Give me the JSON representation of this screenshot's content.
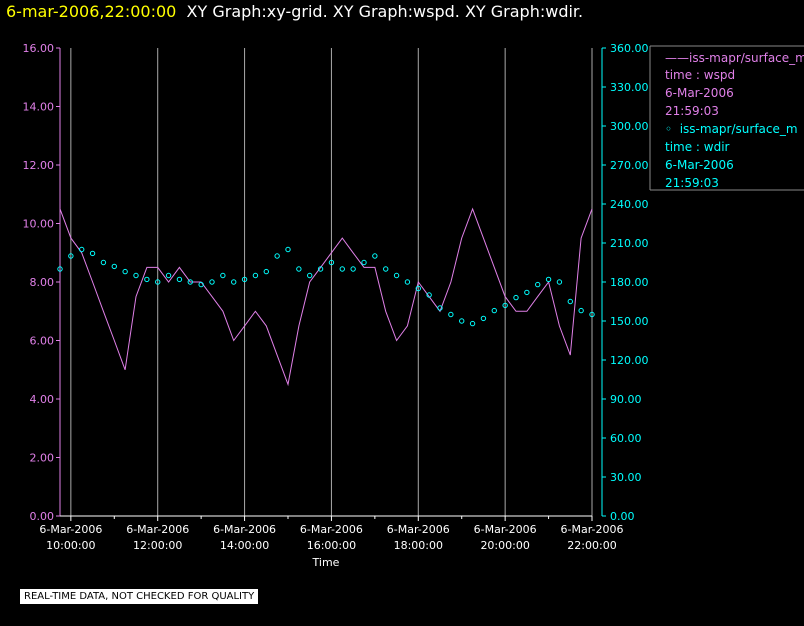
{
  "header": {
    "date": "6-mar-2006,22:00:00",
    "graphs": "XY Graph:xy-grid.  XY Graph:wspd.  XY Graph:wdir."
  },
  "notice": "REAL-TIME DATA, NOT CHECKED FOR QUALITY",
  "legend": {
    "series1": {
      "name": "iss-mapr/surface_m",
      "var": "time : wspd",
      "date": "6-Mar-2006",
      "time": "21:59:03"
    },
    "series2": {
      "name": "iss-mapr/surface_m",
      "var": "time : wdir",
      "date": "6-Mar-2006",
      "time": "21:59:03"
    }
  },
  "colors": {
    "wspd": "#e080e8",
    "wdir": "#00ffff",
    "grid": "#aaaaaa",
    "axis": "#ffffff"
  },
  "chart_data": {
    "type": "line",
    "xlabel": "Time",
    "x_range": [
      "6-Mar-2006 09:45:00",
      "6-Mar-2006 22:00:00"
    ],
    "x_ticks": [
      {
        "date": "6-Mar-2006",
        "time": "10:00:00"
      },
      {
        "date": "6-Mar-2006",
        "time": "12:00:00"
      },
      {
        "date": "6-Mar-2006",
        "time": "14:00:00"
      },
      {
        "date": "6-Mar-2006",
        "time": "16:00:00"
      },
      {
        "date": "6-Mar-2006",
        "time": "18:00:00"
      },
      {
        "date": "6-Mar-2006",
        "time": "20:00:00"
      },
      {
        "date": "6-Mar-2006",
        "time": "22:00:00"
      }
    ],
    "y_left": {
      "lim": [
        0,
        16
      ],
      "ticks": [
        "0.00",
        "2.00",
        "4.00",
        "6.00",
        "8.00",
        "10.00",
        "12.00",
        "14.00",
        "16.00"
      ]
    },
    "y_right": {
      "lim": [
        0,
        360
      ],
      "ticks": [
        "0.00",
        "30.00",
        "60.00",
        "90.00",
        "120.00",
        "150.00",
        "180.00",
        "210.00",
        "240.00",
        "270.00",
        "300.00",
        "330.00",
        "360.00"
      ]
    },
    "grid": "vertical",
    "series": [
      {
        "name": "wspd",
        "axis": "left",
        "style": "line",
        "x": [
          "09:45",
          "10:00",
          "10:15",
          "10:30",
          "10:45",
          "11:00",
          "11:15",
          "11:30",
          "11:45",
          "12:00",
          "12:15",
          "12:30",
          "12:45",
          "13:00",
          "13:15",
          "13:30",
          "13:45",
          "14:00",
          "14:15",
          "14:30",
          "14:45",
          "15:00",
          "15:15",
          "15:30",
          "15:45",
          "16:00",
          "16:15",
          "16:30",
          "16:45",
          "17:00",
          "17:15",
          "17:30",
          "17:45",
          "18:00",
          "18:15",
          "18:30",
          "18:45",
          "19:00",
          "19:15",
          "19:30",
          "19:45",
          "20:00",
          "20:15",
          "20:30",
          "20:45",
          "21:00",
          "21:15",
          "21:30",
          "21:45",
          "22:00"
        ],
        "values": [
          10.5,
          9.5,
          9.0,
          8.0,
          7.0,
          6.0,
          5.0,
          7.5,
          8.5,
          8.5,
          8.0,
          8.5,
          8.0,
          8.0,
          7.5,
          7.0,
          6.0,
          6.5,
          7.0,
          6.5,
          5.5,
          4.5,
          6.5,
          8.0,
          8.5,
          9.0,
          9.5,
          9.0,
          8.5,
          8.5,
          7.0,
          6.0,
          6.5,
          8.0,
          7.5,
          7.0,
          8.0,
          9.5,
          10.5,
          9.5,
          8.5,
          7.5,
          7.0,
          7.0,
          7.5,
          8.0,
          6.5,
          5.5,
          9.5,
          10.5
        ]
      },
      {
        "name": "wdir",
        "axis": "right",
        "style": "markers",
        "x": [
          "09:45",
          "10:00",
          "10:15",
          "10:30",
          "10:45",
          "11:00",
          "11:15",
          "11:30",
          "11:45",
          "12:00",
          "12:15",
          "12:30",
          "12:45",
          "13:00",
          "13:15",
          "13:30",
          "13:45",
          "14:00",
          "14:15",
          "14:30",
          "14:45",
          "15:00",
          "15:15",
          "15:30",
          "15:45",
          "16:00",
          "16:15",
          "16:30",
          "16:45",
          "17:00",
          "17:15",
          "17:30",
          "17:45",
          "18:00",
          "18:15",
          "18:30",
          "18:45",
          "19:00",
          "19:15",
          "19:30",
          "19:45",
          "20:00",
          "20:15",
          "20:30",
          "20:45",
          "21:00",
          "21:15",
          "21:30",
          "21:45",
          "22:00"
        ],
        "values": [
          190,
          200,
          205,
          202,
          195,
          192,
          188,
          185,
          182,
          180,
          185,
          182,
          180,
          178,
          180,
          185,
          180,
          182,
          185,
          188,
          200,
          205,
          190,
          185,
          190,
          195,
          190,
          190,
          195,
          200,
          190,
          185,
          180,
          175,
          170,
          160,
          155,
          150,
          148,
          152,
          158,
          162,
          168,
          172,
          178,
          182,
          180,
          165,
          158,
          155
        ]
      }
    ]
  }
}
